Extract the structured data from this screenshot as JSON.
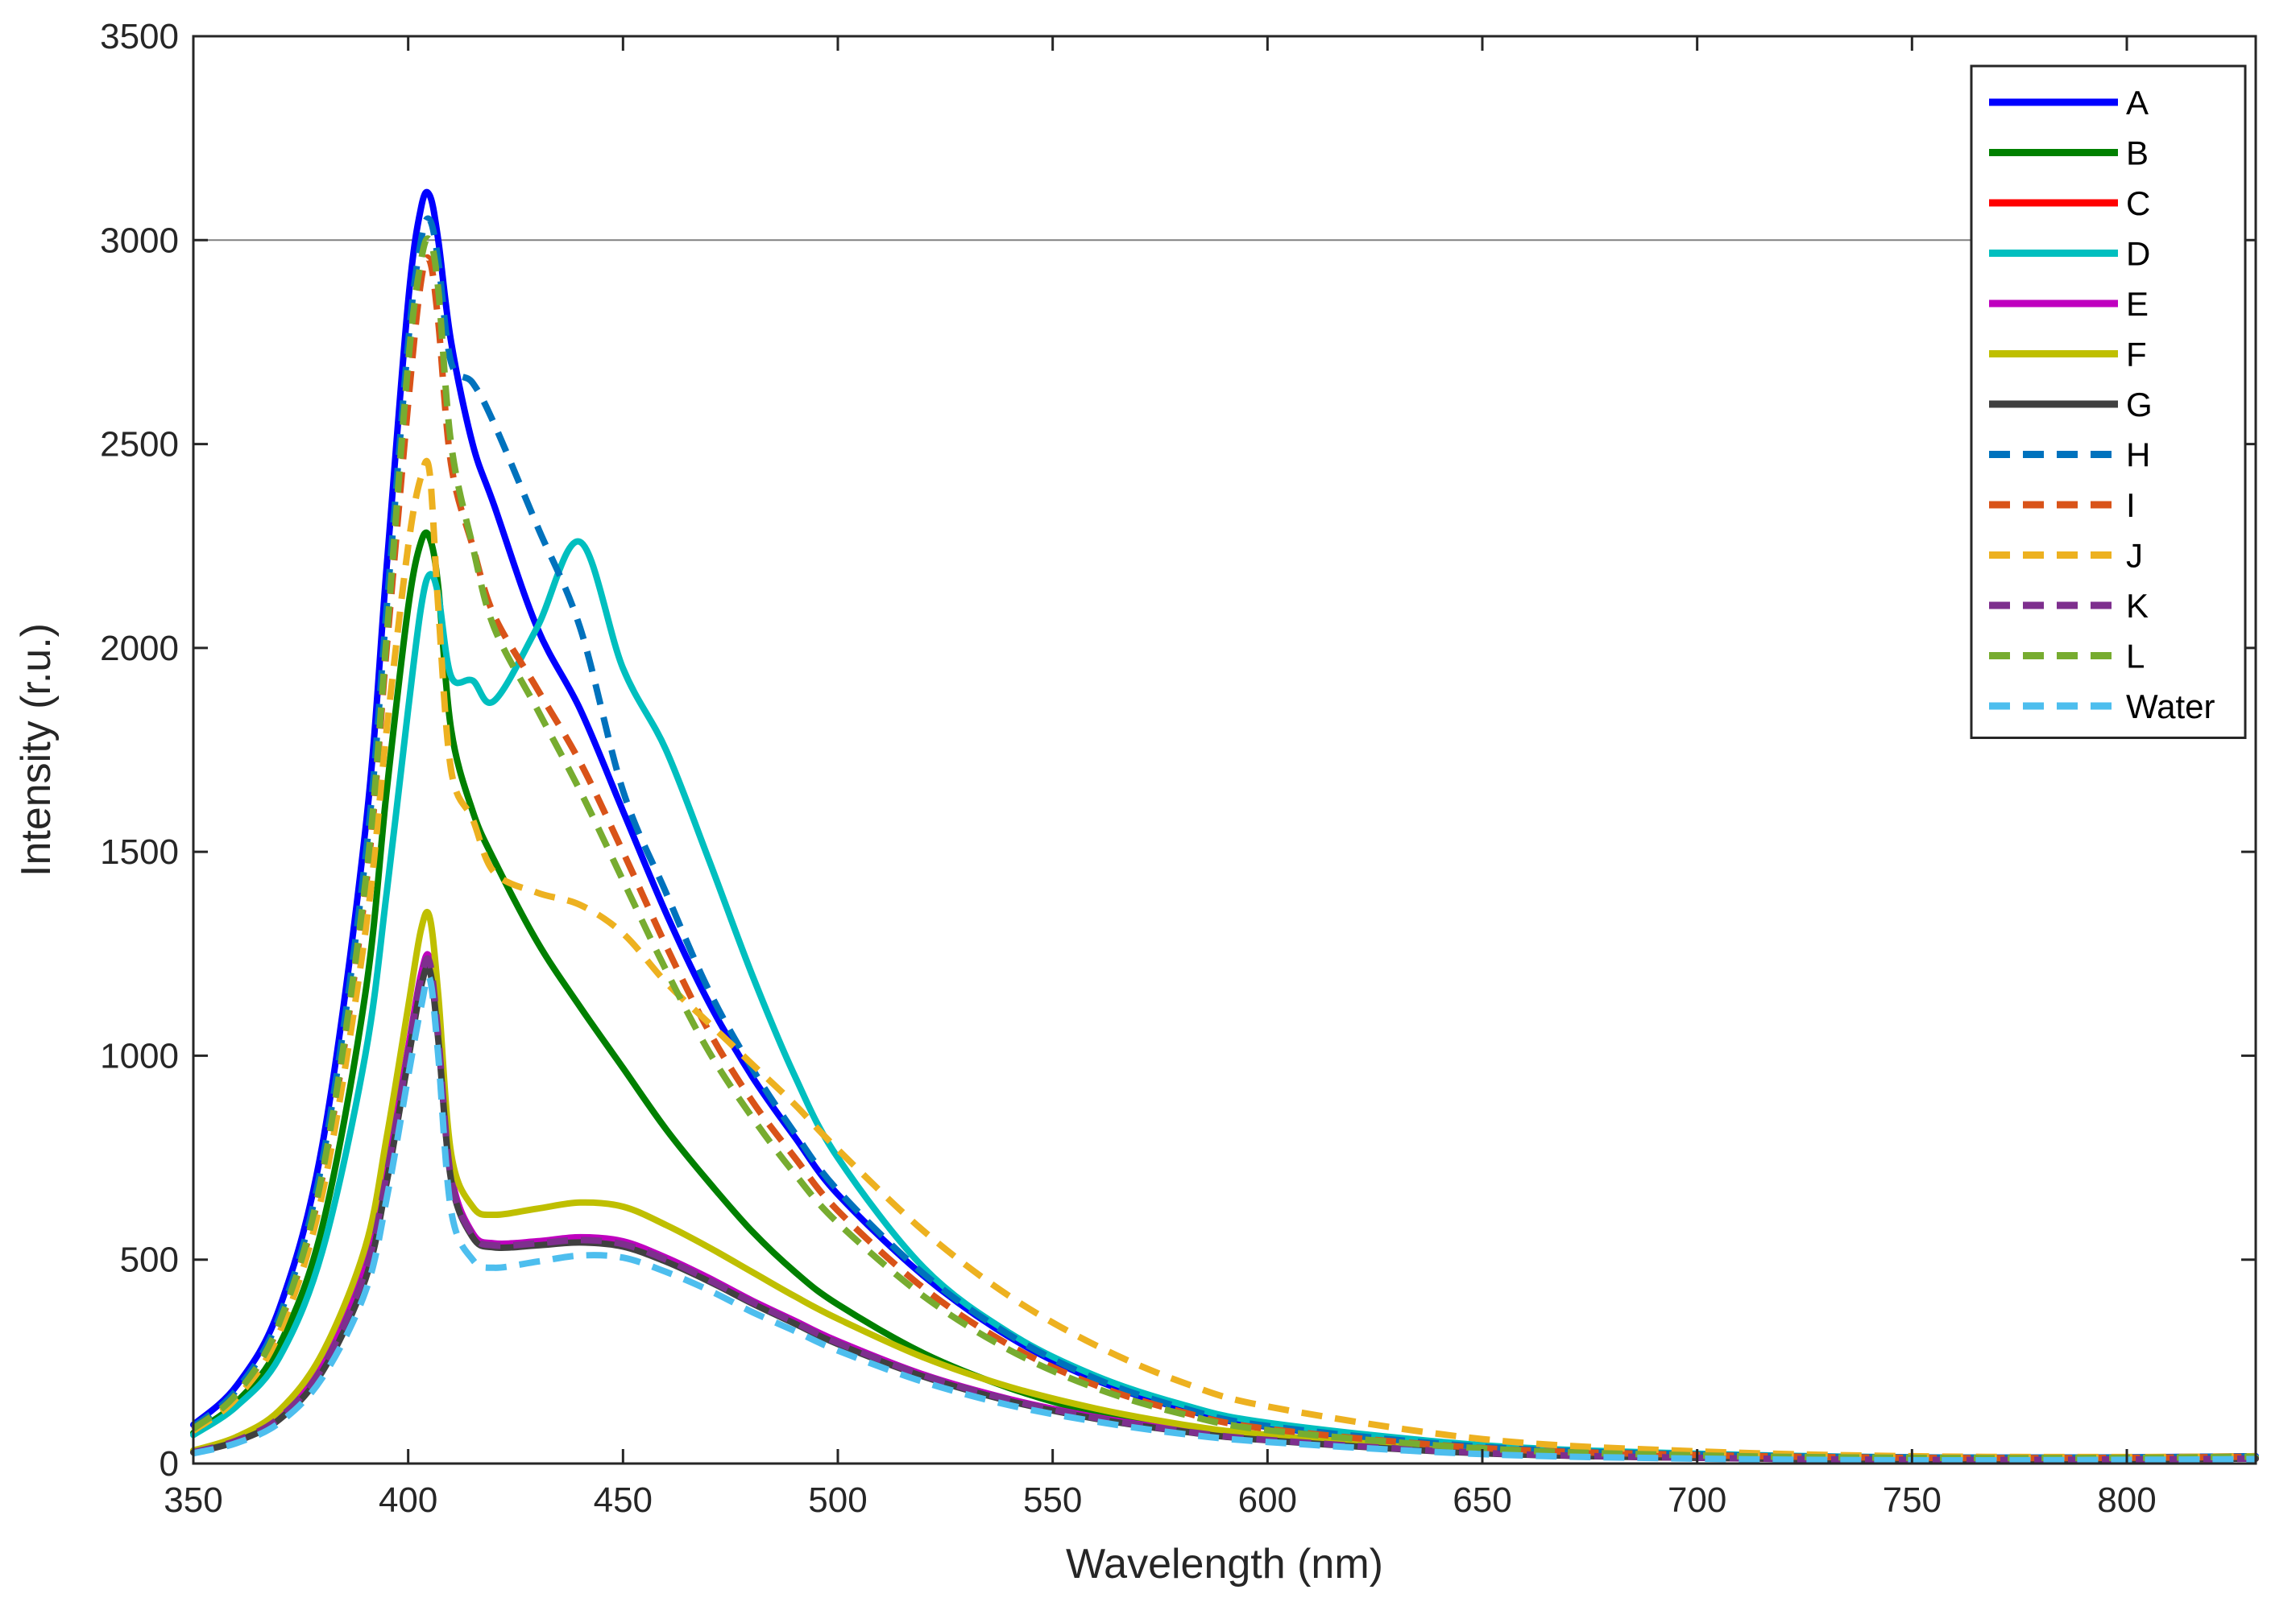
{
  "chart_data": {
    "type": "line",
    "xlabel": "Wavelength (nm)",
    "ylabel": "Intensity (r.u.)",
    "xlim": [
      350,
      830
    ],
    "ylim": [
      0,
      3500
    ],
    "xticks": [
      350,
      400,
      450,
      500,
      550,
      600,
      650,
      700,
      750,
      800
    ],
    "yticks": [
      0,
      500,
      1000,
      1500,
      2000,
      2500,
      3000,
      3500
    ],
    "grid": false,
    "reference_line_y": 3000,
    "legend_position": "top-right",
    "x": [
      350,
      360,
      370,
      380,
      390,
      395,
      400,
      403,
      405,
      407,
      410,
      415,
      420,
      430,
      440,
      450,
      460,
      470,
      480,
      490,
      500,
      520,
      540,
      560,
      580,
      600,
      650,
      700,
      750,
      800,
      830
    ],
    "series": [
      {
        "name": "A",
        "color": "#0000ff",
        "dash": false,
        "values": [
          95,
          190,
          380,
          780,
          1550,
          2200,
          2850,
          3080,
          3110,
          3000,
          2750,
          2500,
          2350,
          2050,
          1850,
          1600,
          1350,
          1130,
          950,
          800,
          660,
          460,
          310,
          205,
          135,
          90,
          40,
          22,
          15,
          15,
          18
        ]
      },
      {
        "name": "B",
        "color": "#008000",
        "dash": false,
        "values": [
          75,
          150,
          290,
          580,
          1150,
          1650,
          2100,
          2260,
          2270,
          2150,
          1800,
          1600,
          1480,
          1280,
          1120,
          970,
          820,
          690,
          570,
          470,
          390,
          270,
          185,
          125,
          88,
          62,
          30,
          17,
          12,
          12,
          14
        ]
      },
      {
        "name": "C",
        "color": "#ff0000",
        "dash": false,
        "values": [
          28,
          55,
          110,
          230,
          460,
          700,
          1000,
          1180,
          1220,
          1050,
          700,
          560,
          535,
          540,
          550,
          540,
          500,
          450,
          395,
          345,
          295,
          215,
          155,
          112,
          80,
          58,
          26,
          14,
          9,
          10,
          12
        ]
      },
      {
        "name": "D",
        "color": "#00bfbf",
        "dash": false,
        "values": [
          70,
          140,
          260,
          520,
          1000,
          1400,
          1850,
          2100,
          2180,
          2130,
          1930,
          1920,
          1870,
          2050,
          2260,
          1950,
          1750,
          1480,
          1200,
          950,
          750,
          480,
          320,
          215,
          145,
          100,
          45,
          24,
          15,
          14,
          16
        ]
      },
      {
        "name": "E",
        "color": "#bf00bf",
        "dash": false,
        "values": [
          30,
          58,
          115,
          240,
          480,
          720,
          1020,
          1200,
          1240,
          1060,
          710,
          565,
          540,
          545,
          555,
          545,
          505,
          455,
          400,
          350,
          300,
          218,
          158,
          114,
          82,
          60,
          27,
          15,
          10,
          11,
          13
        ]
      },
      {
        "name": "F",
        "color": "#bfbf00",
        "dash": false,
        "values": [
          32,
          65,
          130,
          270,
          530,
          800,
          1120,
          1310,
          1340,
          1150,
          760,
          630,
          610,
          625,
          640,
          630,
          585,
          530,
          470,
          410,
          355,
          260,
          188,
          135,
          96,
          70,
          32,
          17,
          11,
          12,
          14
        ]
      },
      {
        "name": "G",
        "color": "#404040",
        "dash": false,
        "values": [
          27,
          54,
          108,
          225,
          450,
          690,
          990,
          1170,
          1210,
          1040,
          695,
          555,
          530,
          535,
          542,
          532,
          495,
          447,
          393,
          343,
          293,
          213,
          153,
          110,
          79,
          57,
          25,
          14,
          9,
          10,
          12
        ]
      },
      {
        "name": "H",
        "color": "#0072bd",
        "dash": true,
        "values": [
          90,
          180,
          360,
          740,
          1480,
          2100,
          2750,
          3000,
          3050,
          2950,
          2700,
          2650,
          2550,
          2300,
          2050,
          1650,
          1400,
          1160,
          970,
          810,
          670,
          465,
          315,
          208,
          137,
          92,
          41,
          22,
          15,
          15,
          18
        ]
      },
      {
        "name": "I",
        "color": "#d95319",
        "dash": true,
        "values": [
          85,
          170,
          340,
          700,
          1400,
          2000,
          2600,
          2900,
          2950,
          2800,
          2450,
          2250,
          2080,
          1900,
          1720,
          1500,
          1270,
          1060,
          890,
          750,
          620,
          430,
          290,
          192,
          127,
          85,
          38,
          21,
          14,
          14,
          17
        ]
      },
      {
        "name": "J",
        "color": "#edb120",
        "dash": true,
        "values": [
          80,
          160,
          320,
          660,
          1300,
          1800,
          2250,
          2420,
          2430,
          2100,
          1700,
          1580,
          1450,
          1400,
          1370,
          1300,
          1180,
          1080,
          980,
          880,
          770,
          570,
          410,
          290,
          200,
          140,
          60,
          30,
          18,
          16,
          18
        ]
      },
      {
        "name": "K",
        "color": "#7e2f8e",
        "dash": true,
        "values": [
          28,
          56,
          112,
          235,
          470,
          710,
          1010,
          1190,
          1230,
          1050,
          700,
          560,
          535,
          540,
          548,
          538,
          500,
          450,
          396,
          346,
          296,
          216,
          156,
          112,
          80,
          58,
          26,
          14,
          9,
          10,
          12
        ]
      },
      {
        "name": "L",
        "color": "#77ac30",
        "dash": true,
        "values": [
          85,
          170,
          345,
          710,
          1420,
          2030,
          2700,
          2950,
          3000,
          2880,
          2500,
          2250,
          2050,
          1850,
          1650,
          1430,
          1210,
          1010,
          850,
          710,
          590,
          410,
          278,
          185,
          122,
          82,
          37,
          20,
          14,
          14,
          17
        ]
      },
      {
        "name": "Water",
        "color": "#4dbeee",
        "dash": true,
        "values": [
          25,
          50,
          100,
          210,
          420,
          650,
          950,
          1120,
          1190,
          1000,
          620,
          500,
          480,
          495,
          510,
          505,
          470,
          425,
          372,
          325,
          277,
          200,
          143,
          103,
          73,
          53,
          23,
          12,
          8,
          9,
          11
        ]
      }
    ]
  }
}
